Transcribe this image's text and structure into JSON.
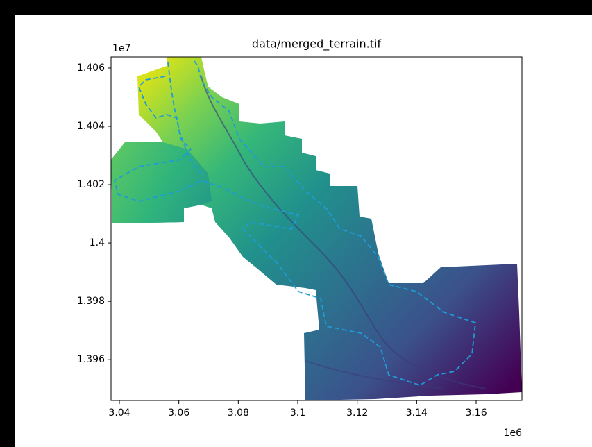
{
  "chart_data": {
    "type": "image",
    "title": "data/merged_terrain.tif",
    "xlim": [
      3.0372,
      3.1754
    ],
    "ylim": [
      1.3946,
      1.40638
    ],
    "xticks": [
      3.04,
      3.06,
      3.08,
      3.1,
      3.12,
      3.14,
      3.16
    ],
    "yticks": [
      1.396,
      1.398,
      1.4,
      1.402,
      1.404,
      1.406
    ],
    "x_offset_label": "1e6",
    "y_offset_label": "1e7"
  }
}
